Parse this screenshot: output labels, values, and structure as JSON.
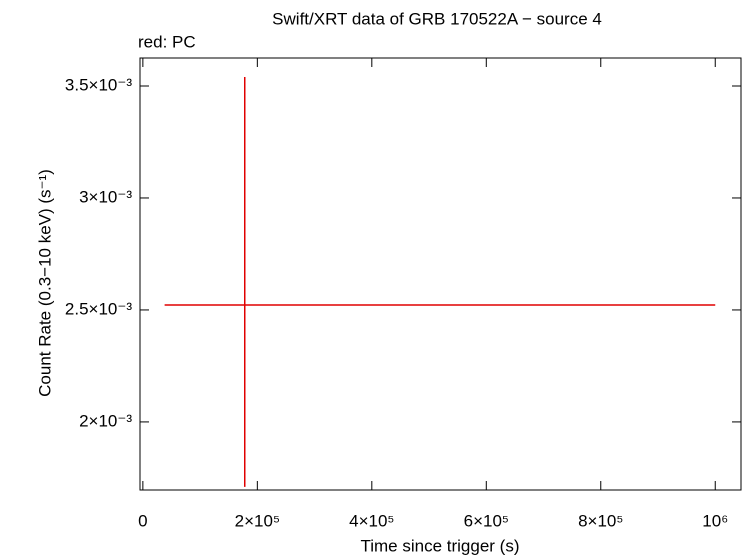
{
  "chart_data": {
    "type": "errorbar",
    "title": "Swift/XRT data of GRB 170522A − source 4",
    "subtitle": "red: PC",
    "xlabel": "Time since trigger (s)",
    "ylabel": "Count Rate (0.3−10 keV) (s⁻¹)",
    "xlim": [
      -5000,
      1045000
    ],
    "ylim": [
      0.001696,
      0.003625
    ],
    "xticks": [
      0,
      {
        "value": 200000,
        "label": "2×10⁵"
      },
      {
        "value": 400000,
        "label": "4×10⁵"
      },
      {
        "value": 600000,
        "label": "6×10⁵"
      },
      {
        "value": 800000,
        "label": "8×10⁵"
      },
      {
        "value": 1000000,
        "label": "10⁶"
      }
    ],
    "yticks": [
      {
        "value": 0.002,
        "label": "2×10⁻³"
      },
      {
        "value": 0.0025,
        "label": "2.5×10⁻³"
      },
      {
        "value": 0.003,
        "label": "3×10⁻³"
      },
      {
        "value": 0.0035,
        "label": "3.5×10⁻³"
      }
    ],
    "series": [
      {
        "color": "#e00000",
        "x": [
          178000
        ],
        "y": [
          0.002522
        ],
        "xerr_minus": [
          140000
        ],
        "xerr_plus": [
          822000
        ],
        "yerr_minus": [
          0.000812
        ],
        "yerr_plus": [
          0.001018
        ]
      }
    ]
  }
}
